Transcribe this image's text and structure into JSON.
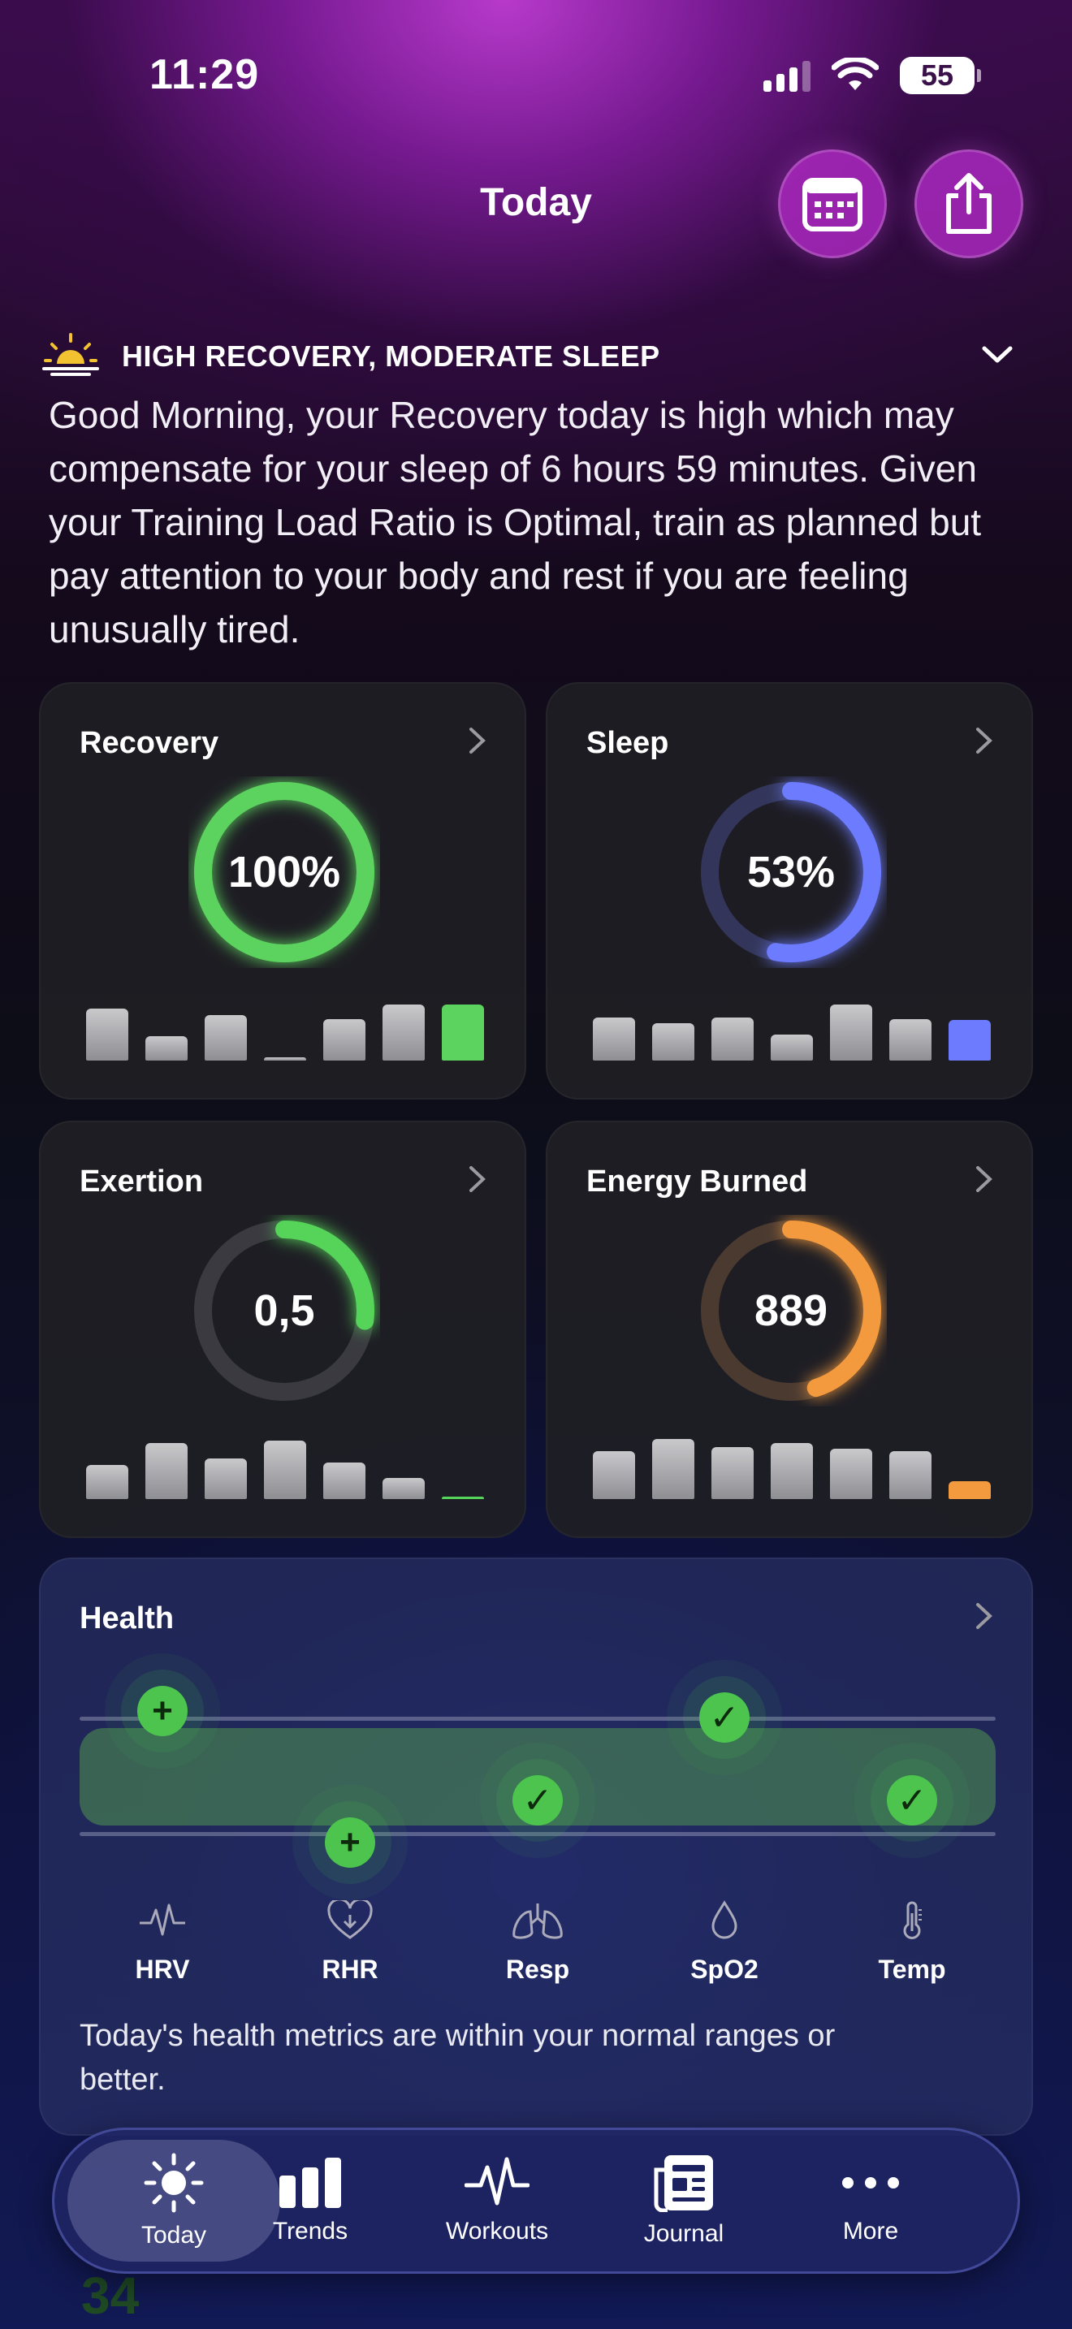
{
  "status": {
    "time": "11:29",
    "battery": "55"
  },
  "header": {
    "title": "Today"
  },
  "insight": {
    "title": "HIGH RECOVERY, MODERATE SLEEP",
    "body": "Good Morning, your Recovery today is high which may compensate for your sleep of 6 hours 59 minutes. Given your Training Load Ratio is Optimal, train as planned but pay attention to your body and rest if you are feeling unusually tired."
  },
  "cards": {
    "recovery": {
      "title": "Recovery",
      "value": "100%",
      "progress": 1.0,
      "color": "#5dd35f",
      "bars": [
        0.8,
        0.38,
        0.7,
        0.05,
        0.64,
        0.86,
        0.86
      ],
      "bar_max": 1.0
    },
    "sleep": {
      "title": "Sleep",
      "value": "53%",
      "progress": 0.53,
      "color": "#6d7cff",
      "bars": [
        0.66,
        0.58,
        0.66,
        0.4,
        0.86,
        0.64,
        0.62
      ],
      "bar_max": 1.0
    },
    "exertion": {
      "title": "Exertion",
      "value": "0,5",
      "progress": 0.27,
      "color": "#56d45a",
      "bars": [
        0.52,
        0.86,
        0.62,
        0.9,
        0.56,
        0.32,
        0.04
      ],
      "bar_max": 1.0
    },
    "energy": {
      "title": "Energy Burned",
      "value": "889",
      "progress": 0.45,
      "color": "#f39a3e",
      "bars": [
        0.74,
        0.92,
        0.8,
        0.86,
        0.78,
        0.74,
        0.28
      ],
      "bar_max": 1.0
    }
  },
  "health": {
    "title": "Health",
    "metrics": [
      {
        "label": "HRV",
        "icon": "hrv-waveform-icon",
        "status": "plus"
      },
      {
        "label": "RHR",
        "icon": "heart-icon",
        "status": "plus"
      },
      {
        "label": "Resp",
        "icon": "lungs-icon",
        "status": "check"
      },
      {
        "label": "SpO2",
        "icon": "droplet-icon",
        "status": "check"
      },
      {
        "label": "Temp",
        "icon": "thermometer-icon",
        "status": "check"
      }
    ],
    "summary": "Today's health metrics are within your normal ranges or better."
  },
  "tabs": [
    {
      "label": "Today",
      "icon": "sun-icon",
      "active": true
    },
    {
      "label": "Trends",
      "icon": "bar-chart-icon",
      "active": false
    },
    {
      "label": "Workouts",
      "icon": "activity-icon",
      "active": false
    },
    {
      "label": "Journal",
      "icon": "journal-icon",
      "active": false
    },
    {
      "label": "More",
      "icon": "more-icon",
      "active": false
    }
  ],
  "peek": {
    "value": "34"
  }
}
